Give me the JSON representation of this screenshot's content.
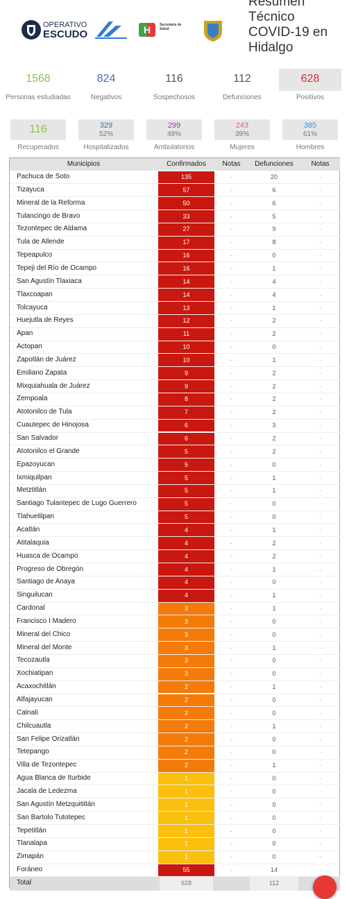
{
  "header": {
    "logo1": [
      "OPERATIVO",
      "ESCUDO"
    ],
    "logo3": [
      "Secretaría de",
      "Salud"
    ],
    "title_lines": [
      "Resumen",
      "Técnico",
      "COVID-19 en",
      "Hidalgo"
    ]
  },
  "stats_row1": [
    {
      "value": 1568,
      "label": "Personas estudiadas",
      "color": "#8bc34a",
      "bg": "#ffffff"
    },
    {
      "value": 824,
      "label": "Negativos",
      "color": "#3f6fb5",
      "bg": "#ffffff"
    },
    {
      "value": 116,
      "label": "Sospechosos",
      "color": "#555555",
      "bg": "#ffffff"
    },
    {
      "value": 112,
      "label": "Defunciones",
      "color": "#555555",
      "bg": "#ffffff"
    },
    {
      "value": 628,
      "label": "Positivos",
      "color": "#d32f2f",
      "bg": "#e6e6e6"
    }
  ],
  "stats_row2": [
    {
      "value": 116,
      "label": "Recuperados",
      "color": "#8bc34a"
    },
    {
      "value": 329,
      "percent": "52%",
      "label": "Hospitalizados",
      "color": "#3f6fb5"
    },
    {
      "value": 299,
      "percent": "48%",
      "label": "Ambulatorios",
      "color": "#8e44ad"
    },
    {
      "value": 243,
      "percent": "39%",
      "label": "Mujeres",
      "color": "#e0607e"
    },
    {
      "value": 385,
      "percent": "61%",
      "label": "Hombres",
      "color": "#3f8fd5"
    }
  ],
  "table": {
    "columns": [
      "Municipios",
      "Confirmados",
      "Notas",
      "Defunciones",
      "Notas"
    ],
    "rows": [
      [
        "Pachuca de Soto",
        135,
        "-",
        20,
        "-"
      ],
      [
        "Tizayuca",
        57,
        "-",
        6,
        "-"
      ],
      [
        "Mineral de la Reforma",
        50,
        "-",
        6,
        "-"
      ],
      [
        "Tulancingo de Bravo",
        33,
        "-",
        5,
        "-"
      ],
      [
        "Tezontepec de Aldama",
        27,
        "-",
        9,
        "-"
      ],
      [
        "Tula de Allende",
        17,
        "-",
        8,
        "-"
      ],
      [
        "Tepeapulco",
        16,
        "-",
        0,
        "-"
      ],
      [
        "Tepeji del Río de Ocampo",
        16,
        "-",
        1,
        "-"
      ],
      [
        "San Agustín Tlaxiaca",
        14,
        "-",
        4,
        "-"
      ],
      [
        "Tlaxcoapan",
        14,
        "-",
        4,
        "-"
      ],
      [
        "Tolcayuca",
        13,
        "-",
        1,
        "-"
      ],
      [
        "Huejutla de Reyes",
        12,
        "-",
        2,
        "-"
      ],
      [
        "Apan",
        11,
        "-",
        2,
        "-"
      ],
      [
        "Actopan",
        10,
        "-",
        0,
        "-"
      ],
      [
        "Zapotlán de Juárez",
        10,
        "-",
        1,
        "-"
      ],
      [
        "Emiliano Zapata",
        9,
        "-",
        2,
        "-"
      ],
      [
        "Mixquiahuala de Juárez",
        9,
        "-",
        2,
        "-"
      ],
      [
        "Zempoala",
        8,
        "-",
        2,
        "-"
      ],
      [
        "Atotonilco de Tula",
        7,
        "-",
        2,
        "-"
      ],
      [
        "Cuautepec de Hinojosa",
        6,
        "-",
        3,
        "-"
      ],
      [
        "San Salvador",
        6,
        "-",
        2,
        "-"
      ],
      [
        "Atotonilco el Grande",
        5,
        "-",
        2,
        "-"
      ],
      [
        "Epazoyucan",
        5,
        "-",
        0,
        "-"
      ],
      [
        "Ixmiquilpan",
        5,
        "-",
        1,
        "-"
      ],
      [
        "Metztitlán",
        5,
        "-",
        1,
        "-"
      ],
      [
        "Santiago Tulantepec de Lugo Guerrero",
        5,
        "-",
        0,
        "-"
      ],
      [
        "Tlahuelilpan",
        5,
        "-",
        0,
        "-"
      ],
      [
        "Acatlán",
        4,
        "-",
        1,
        "-"
      ],
      [
        "Atitalaquia",
        4,
        "-",
        2,
        "-"
      ],
      [
        "Huasca de Ocampo",
        4,
        "-",
        2,
        "-"
      ],
      [
        "Progreso de Obregón",
        4,
        "-",
        1,
        "-"
      ],
      [
        "Santiago de Anaya",
        4,
        "-",
        0,
        "-"
      ],
      [
        "Singuilucan",
        4,
        "-",
        1,
        "-"
      ],
      [
        "Cardonal",
        3,
        "-",
        1,
        "-"
      ],
      [
        "Francisco I Madero",
        3,
        "-",
        0,
        "-"
      ],
      [
        "Mineral del Chico",
        3,
        "-",
        0,
        "-"
      ],
      [
        "Mineral del Monte",
        3,
        "-",
        1,
        "-"
      ],
      [
        "Tecozautla",
        3,
        "-",
        0,
        "-"
      ],
      [
        "Xochiatipan",
        3,
        "-",
        0,
        "-"
      ],
      [
        "Acaxochitlán",
        2,
        "-",
        1,
        "-"
      ],
      [
        "Alfajayucan",
        2,
        "-",
        0,
        "-"
      ],
      [
        "Calnali",
        2,
        "-",
        0,
        "-"
      ],
      [
        "Chilcuautla",
        2,
        "-",
        1,
        "-"
      ],
      [
        "San Felipe Orizatlán",
        2,
        "-",
        0,
        "-"
      ],
      [
        "Tetepango",
        2,
        "-",
        0,
        "-"
      ],
      [
        "Villa de Tezontepec",
        2,
        "-",
        1,
        "-"
      ],
      [
        "Agua Blanca de Iturbide",
        1,
        "-",
        0,
        "-"
      ],
      [
        "Jacala de Ledezma",
        1,
        "-",
        0,
        "-"
      ],
      [
        "San Agustín Metzquititlán",
        1,
        "-",
        0,
        "-"
      ],
      [
        "San Bartolo Tutotepec",
        1,
        "-",
        0,
        "-"
      ],
      [
        "Tepetitlán",
        1,
        "-",
        0,
        "-"
      ],
      [
        "Tlanalapa",
        1,
        "-",
        0,
        "-"
      ],
      [
        "Zimapán",
        1,
        "-",
        0,
        "-"
      ],
      [
        "Foráneo",
        55,
        "-",
        14,
        "-"
      ]
    ],
    "color_scale": [
      {
        "min": 4,
        "color": "#c9180f"
      },
      {
        "min": 2,
        "color": "#f47b0a"
      },
      {
        "min": 1,
        "color": "#fbbf0d"
      }
    ],
    "total": [
      "Total",
      628,
      112
    ]
  }
}
